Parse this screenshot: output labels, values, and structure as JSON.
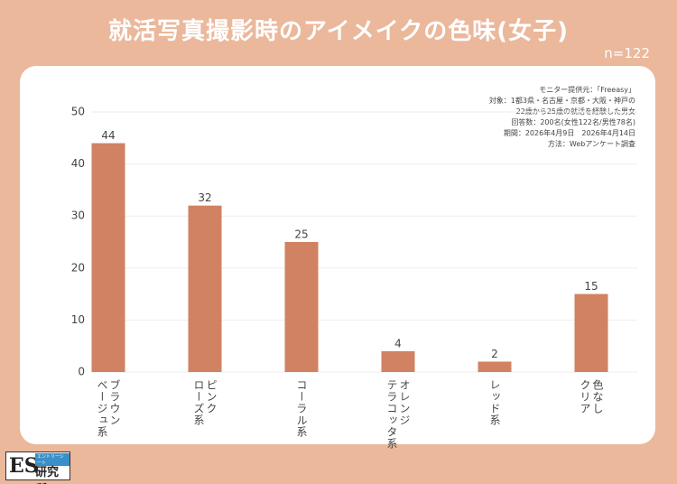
{
  "chart_data": {
    "type": "bar",
    "title": "就活写真撮影時のアイメイクの色味(女子)",
    "subtitle": "n=122",
    "categories": [
      "ブラウン\nベージュ系",
      "ピンク\nローズ系",
      "コーラル系",
      "オレンジ\nテラコッタ系",
      "レッド系",
      "色なし\nクリア"
    ],
    "values": [
      44,
      32,
      25,
      4,
      2,
      15
    ],
    "color": "#d08262",
    "ylim": [
      0,
      50
    ],
    "yticks": [
      0,
      10,
      20,
      30,
      40,
      50
    ],
    "grid": true,
    "notes": [
      "モニター提供元：「Freeasy」",
      "対象：1都3県・名古屋・京都・大阪・神戸の",
      "22歳から25歳の就活を経験した男女",
      "回答数：200名(女性122名/男性78名)",
      "期間：2026年4月9日　2026年4月14日",
      "方法：Webアンケート調査"
    ]
  },
  "logo": {
    "main": "ES",
    "sub": "研究所",
    "tag": "エントリーシート"
  }
}
